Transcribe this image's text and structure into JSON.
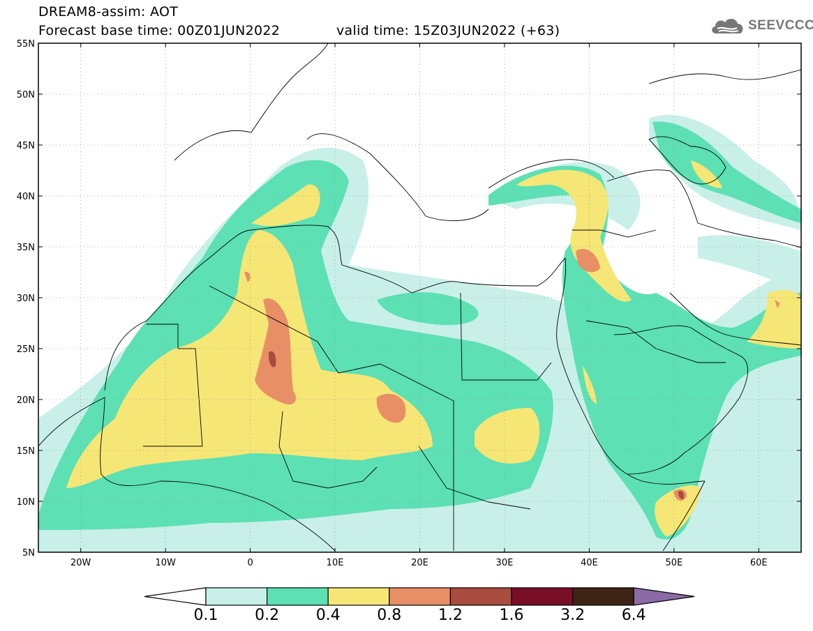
{
  "title": {
    "line1": "DREAM8-assim: AOT",
    "line2": "Forecast base time: 00Z01JUN2022",
    "valid": "valid time: 15Z03JUN2022 (+63)"
  },
  "logo": {
    "icon": "cloud-icon",
    "text": "SEEVCCC"
  },
  "map": {
    "lon_range": [
      -25,
      65
    ],
    "lat_range": [
      5,
      55
    ],
    "lat_labels": [
      "5N",
      "10N",
      "15N",
      "20N",
      "25N",
      "30N",
      "35N",
      "40N",
      "45N",
      "50N",
      "55N"
    ],
    "lon_labels": [
      "20W",
      "10W",
      "0",
      "10E",
      "20E",
      "30E",
      "40E",
      "50E",
      "60E"
    ],
    "grid": true
  },
  "colorbar": {
    "colors": [
      "#c8f0e8",
      "#5ce0b4",
      "#f6e676",
      "#e98f66",
      "#a94c3e",
      "#7a0e26",
      "#3e2414",
      "#8c6aa8"
    ],
    "labels": [
      "0.1",
      "0.2",
      "0.4",
      "0.8",
      "1.2",
      "1.6",
      "3.2",
      "6.4"
    ]
  }
}
